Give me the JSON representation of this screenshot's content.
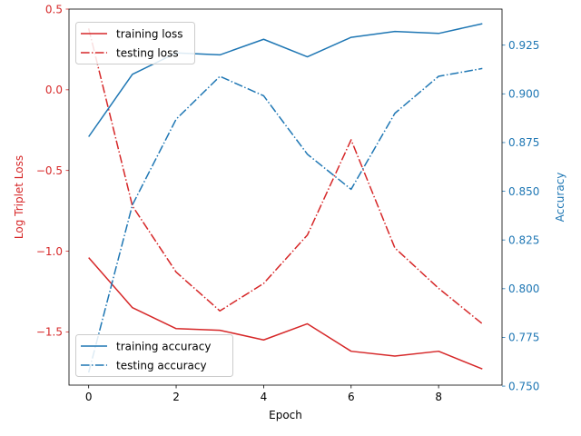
{
  "chart_data": {
    "type": "line",
    "xlabel": "Epoch",
    "ylabel_left": "Log Triplet Loss",
    "ylabel_right": "Accuracy",
    "x": [
      0,
      1,
      2,
      3,
      4,
      5,
      6,
      7,
      8,
      9
    ],
    "xlim": [
      -0.45,
      9.45
    ],
    "ylim_left": [
      -1.83,
      0.5
    ],
    "ylim_right": [
      0.7505,
      0.9435
    ],
    "x_ticks": [
      0,
      2,
      4,
      6,
      8
    ],
    "x_tick_labels": [
      "0",
      "2",
      "4",
      "6",
      "8"
    ],
    "left_ticks": [
      0.5,
      0.0,
      -0.5,
      -1.0,
      -1.5
    ],
    "left_tick_labels": [
      "0.5",
      "0.0",
      "−0.5",
      "−1.0",
      "−1.5"
    ],
    "right_ticks": [
      0.925,
      0.9,
      0.875,
      0.85,
      0.825,
      0.8,
      0.775,
      0.75
    ],
    "right_tick_labels": [
      "0.925",
      "0.900",
      "0.875",
      "0.850",
      "0.825",
      "0.800",
      "0.775",
      "0.750"
    ],
    "grid": false,
    "loss_series": [
      {
        "name": "training loss",
        "style": "solid",
        "values": [
          -1.04,
          -1.35,
          -1.48,
          -1.49,
          -1.55,
          -1.45,
          -1.62,
          -1.65,
          -1.62,
          -1.73
        ]
      },
      {
        "name": "testing loss",
        "style": "dashdot",
        "values": [
          0.38,
          -0.72,
          -1.13,
          -1.37,
          -1.2,
          -0.9,
          -0.31,
          -0.98,
          -1.23,
          -1.45
        ]
      }
    ],
    "accuracy_series": [
      {
        "name": "training accuracy",
        "style": "solid",
        "values": [
          0.878,
          0.91,
          0.921,
          0.92,
          0.928,
          0.919,
          0.929,
          0.932,
          0.931,
          0.936
        ]
      },
      {
        "name": "testing accuracy",
        "style": "dashdot",
        "values": [
          0.757,
          0.843,
          0.887,
          0.909,
          0.899,
          0.869,
          0.851,
          0.89,
          0.909,
          0.913
        ]
      }
    ],
    "legend_left_position": "upper-left",
    "legend_right_position": "lower-left",
    "colors": {
      "loss": "#d62728",
      "accuracy": "#1f77b4",
      "axis": "#000000"
    }
  }
}
